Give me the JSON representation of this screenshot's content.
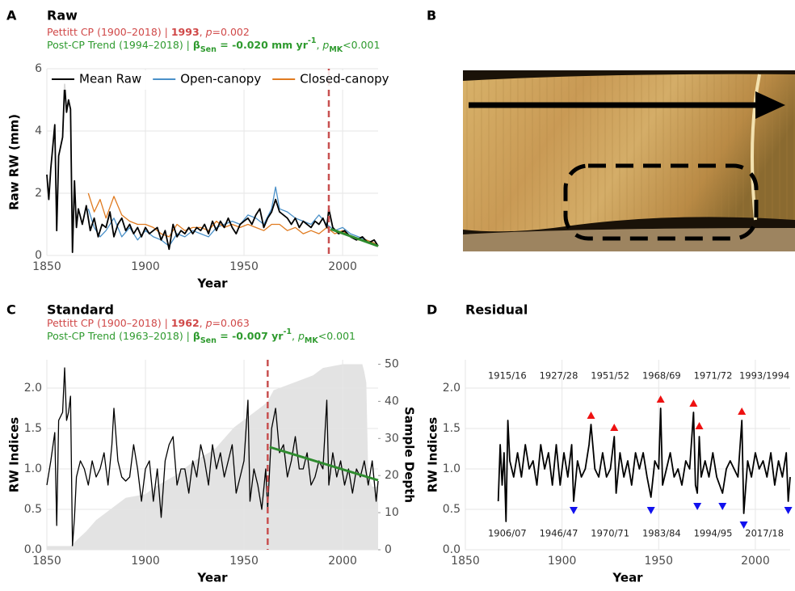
{
  "chart_data": [
    {
      "panel": "A",
      "type": "line",
      "title": "Raw",
      "subtitle": [
        [
          "Pettitt CP (1900–2018) | ",
          "1993",
          ", ",
          "p",
          "=0.002"
        ],
        [
          "Post-CP Trend (1994–2018) | ",
          "β",
          "Sen",
          " = -0.020 mm yr",
          "-1",
          ", ",
          "p",
          "MK",
          "<0.001"
        ]
      ],
      "xlabel": "Year",
      "ylabel": "Raw RW (mm)",
      "xlim": [
        1850,
        2018
      ],
      "ylim": [
        0,
        6
      ],
      "xticks": [
        1850,
        1900,
        1950,
        2000
      ],
      "yticks": [
        0,
        2,
        4,
        6
      ],
      "grid": true,
      "legend": "top-left",
      "series": [
        {
          "name": "Mean Raw",
          "color": "#000000",
          "x": [
            1850,
            1851,
            1852,
            1854,
            1855,
            1856,
            1858,
            1859,
            1860,
            1861,
            1862,
            1863,
            1864,
            1865,
            1866,
            1868,
            1870,
            1872,
            1874,
            1876,
            1878,
            1880,
            1882,
            1884,
            1886,
            1888,
            1890,
            1892,
            1894,
            1896,
            1898,
            1900,
            1902,
            1904,
            1906,
            1908,
            1910,
            1912,
            1914,
            1916,
            1918,
            1920,
            1922,
            1924,
            1926,
            1928,
            1930,
            1932,
            1934,
            1936,
            1938,
            1940,
            1942,
            1944,
            1946,
            1948,
            1950,
            1952,
            1954,
            1956,
            1958,
            1960,
            1962,
            1964,
            1966,
            1968,
            1970,
            1972,
            1974,
            1976,
            1978,
            1980,
            1982,
            1984,
            1986,
            1988,
            1990,
            1992,
            1993,
            1995,
            1998,
            2001,
            2004,
            2007,
            2010,
            2013,
            2016,
            2018
          ],
          "values": [
            2.6,
            1.8,
            2.8,
            4.2,
            0.8,
            3.2,
            3.8,
            5.5,
            4.6,
            5.0,
            4.7,
            0.1,
            2.4,
            0.9,
            1.5,
            1.0,
            1.6,
            0.8,
            1.2,
            0.6,
            1.0,
            0.9,
            1.4,
            0.6,
            1.0,
            1.2,
            0.8,
            1.0,
            0.7,
            0.9,
            0.6,
            0.9,
            0.7,
            0.8,
            0.9,
            0.5,
            0.8,
            0.2,
            1.0,
            0.6,
            0.8,
            0.7,
            0.9,
            0.7,
            0.9,
            0.8,
            1.0,
            0.7,
            1.1,
            0.8,
            1.1,
            0.9,
            1.2,
            0.9,
            0.7,
            1.0,
            1.1,
            1.2,
            1.0,
            1.3,
            1.5,
            0.9,
            1.2,
            1.4,
            1.8,
            1.4,
            1.3,
            1.2,
            1.0,
            1.2,
            0.9,
            1.1,
            1.0,
            0.9,
            1.1,
            1.0,
            1.2,
            0.9,
            1.5,
            0.9,
            0.7,
            0.8,
            0.6,
            0.5,
            0.6,
            0.4,
            0.5,
            0.3
          ]
        },
        {
          "name": "Open-canopy",
          "color": "#4a90c8",
          "x": [
            1871,
            1874,
            1877,
            1880,
            1884,
            1888,
            1892,
            1896,
            1900,
            1904,
            1908,
            1912,
            1916,
            1920,
            1924,
            1928,
            1932,
            1936,
            1940,
            1944,
            1948,
            1952,
            1956,
            1960,
            1964,
            1966,
            1968,
            1972,
            1976,
            1980,
            1984,
            1988,
            1992,
            1996,
            2000,
            2004,
            2008,
            2012,
            2016,
            2018
          ],
          "values": [
            1.5,
            0.9,
            0.6,
            0.8,
            1.2,
            0.6,
            0.9,
            0.5,
            0.8,
            0.6,
            0.5,
            0.3,
            0.7,
            0.6,
            0.8,
            0.7,
            0.6,
            0.9,
            1.0,
            1.1,
            1.0,
            1.3,
            1.2,
            1.0,
            1.5,
            2.2,
            1.5,
            1.4,
            1.2,
            1.1,
            1.0,
            1.3,
            1.0,
            0.8,
            0.9,
            0.7,
            0.6,
            0.5,
            0.4,
            0.3
          ]
        },
        {
          "name": "Closed-canopy",
          "color": "#e07b20",
          "x": [
            1871,
            1874,
            1877,
            1880,
            1884,
            1888,
            1892,
            1896,
            1900,
            1904,
            1908,
            1912,
            1916,
            1920,
            1924,
            1928,
            1932,
            1936,
            1940,
            1944,
            1948,
            1952,
            1956,
            1960,
            1964,
            1968,
            1972,
            1976,
            1980,
            1984,
            1988,
            1992,
            1996,
            2000,
            2004,
            2008,
            2012,
            2016,
            2018
          ],
          "values": [
            2.0,
            1.4,
            1.8,
            1.2,
            1.9,
            1.3,
            1.1,
            1.0,
            1.0,
            0.9,
            0.7,
            0.6,
            1.0,
            0.8,
            0.9,
            0.9,
            0.8,
            1.1,
            0.9,
            1.0,
            0.9,
            1.0,
            0.9,
            0.8,
            1.0,
            1.0,
            0.8,
            0.9,
            0.7,
            0.8,
            0.7,
            0.9,
            0.7,
            0.8,
            0.6,
            0.5,
            0.5,
            0.4,
            0.3
          ]
        }
      ],
      "trend": {
        "color": "#2e8b2e",
        "x": [
          1994,
          2018
        ],
        "values": [
          0.85,
          0.3
        ]
      },
      "change_point": {
        "color": "#c85050",
        "x": 1993
      }
    },
    {
      "panel": "B",
      "type": "image"
    },
    {
      "panel": "C",
      "type": "line",
      "title": "Standard",
      "subtitle": [
        [
          "Pettitt CP (1900–2018) | ",
          "1962",
          ", ",
          "p",
          "=0.063"
        ],
        [
          "Post-CP Trend (1963–2018) | ",
          "β",
          "Sen",
          " = -0.007 yr",
          "-1",
          ", ",
          "p",
          "MK",
          "<0.001"
        ]
      ],
      "xlabel": "Year",
      "ylabel": "RW Indices",
      "y2label": "Sample Depth",
      "xlim": [
        1850,
        2018
      ],
      "ylim": [
        0,
        2.35
      ],
      "y2lim": [
        0,
        51.2
      ],
      "xticks": [
        1850,
        1900,
        1950,
        2000
      ],
      "yticks": [
        {
          "value": 0,
          "label": "0.0"
        },
        {
          "value": 0.5,
          "label": "0.5"
        },
        {
          "value": 1,
          "label": "1.0"
        },
        {
          "value": 1.5,
          "label": "1.5"
        },
        {
          "value": 2,
          "label": "2.0"
        }
      ],
      "y2ticks": [
        0,
        10,
        20,
        30,
        40,
        50
      ],
      "grid": true,
      "series": [
        {
          "axis": "y2",
          "kind": "area",
          "color": "#e3e3e3",
          "x": [
            1850,
            1862,
            1866,
            1870,
            1875,
            1880,
            1890,
            1900,
            1905,
            1915,
            1920,
            1925,
            1935,
            1940,
            1945,
            1955,
            1960,
            1962,
            1965,
            1975,
            1985,
            1990,
            2000,
            2010,
            2011,
            2012,
            2013,
            2015,
            2018
          ],
          "values": [
            1,
            1,
            3,
            5,
            8,
            10,
            14,
            15,
            17,
            20,
            22,
            24,
            27,
            30,
            33,
            37,
            39,
            40,
            43,
            45,
            47,
            49,
            50,
            50,
            48,
            45,
            20,
            17,
            17
          ]
        },
        {
          "color": "#000000",
          "x": [
            1850,
            1852,
            1854,
            1855,
            1856,
            1858,
            1859,
            1860,
            1861,
            1862,
            1863,
            1864,
            1865,
            1867,
            1869,
            1871,
            1873,
            1875,
            1877,
            1879,
            1881,
            1883,
            1884,
            1886,
            1888,
            1890,
            1892,
            1894,
            1896,
            1898,
            1900,
            1902,
            1904,
            1906,
            1908,
            1910,
            1912,
            1914,
            1916,
            1918,
            1920,
            1922,
            1924,
            1926,
            1928,
            1930,
            1932,
            1934,
            1936,
            1938,
            1940,
            1942,
            1944,
            1946,
            1948,
            1950,
            1952,
            1953,
            1955,
            1957,
            1959,
            1961,
            1962,
            1964,
            1966,
            1968,
            1970,
            1972,
            1974,
            1976,
            1978,
            1980,
            1982,
            1984,
            1986,
            1988,
            1990,
            1992,
            1993,
            1995,
            1997,
            1999,
            2001,
            2003,
            2005,
            2007,
            2009,
            2011,
            2013,
            2015,
            2017,
            2018
          ],
          "values": [
            0.8,
            1.1,
            1.45,
            0.3,
            1.6,
            1.7,
            2.25,
            1.6,
            1.7,
            1.9,
            0.05,
            0.4,
            0.9,
            1.1,
            1.0,
            0.8,
            1.1,
            0.9,
            1.0,
            1.2,
            0.8,
            1.3,
            1.75,
            1.1,
            0.9,
            0.85,
            0.9,
            1.3,
            1.0,
            0.6,
            1.0,
            1.1,
            0.6,
            1.0,
            0.4,
            1.1,
            1.3,
            1.4,
            0.8,
            1.0,
            1.0,
            0.7,
            1.1,
            0.9,
            1.3,
            1.1,
            0.8,
            1.3,
            1.0,
            1.2,
            0.9,
            1.1,
            1.3,
            0.7,
            0.9,
            1.1,
            1.85,
            0.6,
            1.0,
            0.8,
            0.5,
            1.0,
            0.5,
            1.5,
            1.75,
            1.2,
            1.3,
            0.9,
            1.1,
            1.4,
            1.0,
            1.0,
            1.2,
            0.8,
            0.9,
            1.1,
            1.0,
            1.85,
            0.8,
            1.2,
            0.9,
            1.1,
            0.8,
            1.0,
            0.7,
            1.0,
            0.9,
            1.1,
            0.8,
            1.1,
            0.6,
            0.85
          ]
        }
      ],
      "trend": {
        "color": "#2e8b2e",
        "x": [
          1963,
          2018
        ],
        "values": [
          1.27,
          0.86
        ]
      },
      "change_point": {
        "color": "#c85050",
        "x": 1962
      }
    },
    {
      "panel": "D",
      "type": "line",
      "title": "Residual",
      "xlabel": "Year",
      "ylabel": "RW Indices",
      "xlim": [
        1850,
        2018
      ],
      "ylim": [
        0,
        2.35
      ],
      "xticks": [
        1850,
        1900,
        1950,
        2000
      ],
      "yticks": [
        {
          "value": 0,
          "label": "0.0"
        },
        {
          "value": 0.5,
          "label": "0.5"
        },
        {
          "value": 1,
          "label": "1.0"
        },
        {
          "value": 1.5,
          "label": "1.5"
        },
        {
          "value": 2,
          "label": "2.0"
        }
      ],
      "grid": true,
      "series": [
        {
          "color": "#000000",
          "x": [
            1867,
            1868,
            1869,
            1870,
            1871,
            1872,
            1873,
            1875,
            1877,
            1879,
            1881,
            1883,
            1885,
            1887,
            1889,
            1891,
            1893,
            1895,
            1897,
            1899,
            1901,
            1903,
            1905,
            1906,
            1908,
            1910,
            1912,
            1914,
            1915,
            1917,
            1919,
            1921,
            1923,
            1925,
            1927,
            1928,
            1930,
            1932,
            1934,
            1936,
            1938,
            1940,
            1942,
            1944,
            1946,
            1948,
            1950,
            1951,
            1952,
            1954,
            1956,
            1958,
            1960,
            1962,
            1964,
            1966,
            1968,
            1969,
            1970,
            1971,
            1972,
            1974,
            1976,
            1978,
            1980,
            1983,
            1985,
            1987,
            1989,
            1991,
            1993,
            1994,
            1996,
            1998,
            2000,
            2002,
            2004,
            2006,
            2008,
            2010,
            2012,
            2014,
            2016,
            2017,
            2018
          ],
          "values": [
            0.6,
            1.3,
            0.8,
            1.2,
            0.35,
            1.6,
            1.1,
            0.9,
            1.2,
            0.9,
            1.3,
            1.0,
            1.1,
            0.8,
            1.3,
            1.0,
            1.2,
            0.8,
            1.3,
            0.8,
            1.2,
            0.9,
            1.3,
            0.6,
            1.1,
            0.9,
            1.0,
            1.3,
            1.55,
            1.0,
            0.9,
            1.2,
            0.9,
            1.0,
            1.4,
            0.7,
            1.2,
            0.9,
            1.1,
            0.8,
            1.2,
            1.0,
            1.2,
            0.9,
            0.65,
            1.1,
            1.0,
            1.75,
            0.8,
            1.0,
            1.2,
            0.9,
            1.0,
            0.8,
            1.1,
            1.0,
            1.7,
            0.8,
            0.7,
            1.4,
            0.9,
            1.1,
            0.9,
            1.2,
            0.9,
            0.7,
            1.0,
            1.1,
            1.0,
            0.9,
            1.6,
            0.45,
            1.1,
            0.9,
            1.2,
            1.0,
            1.1,
            0.9,
            1.2,
            0.8,
            1.1,
            0.9,
            1.2,
            0.6,
            0.9
          ]
        }
      ],
      "highs": {
        "color": "#ee1111",
        "x": [
          1915,
          1927,
          1951,
          1968,
          1971,
          1993
        ],
        "values": [
          1.6,
          1.45,
          1.8,
          1.75,
          1.47,
          1.65
        ],
        "labels": [
          "1915/16",
          "1927/28",
          "1951/52",
          "1968/69",
          "1971/72",
          "1993/1994"
        ]
      },
      "lows": {
        "color": "#1111ee",
        "x": [
          1906,
          1946,
          1970,
          1983,
          1994,
          2017
        ],
        "values": [
          0.55,
          0.55,
          0.6,
          0.6,
          0.37,
          0.55
        ],
        "labels": [
          "1906/07",
          "1946/47",
          "1970/71",
          "1983/84",
          "1994/95",
          "2017/18"
        ]
      }
    }
  ]
}
